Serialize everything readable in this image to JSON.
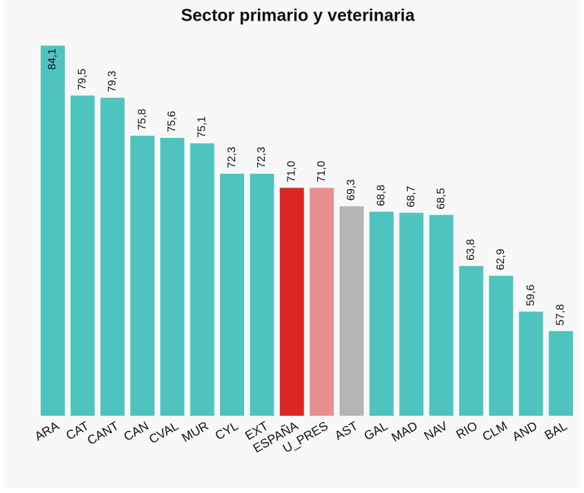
{
  "chart_data": {
    "type": "bar",
    "title": "Sector primario y veterinaria",
    "categories": [
      "ARA",
      "CAT",
      "CANT",
      "CAN",
      "CVAL",
      "MUR",
      "CYL",
      "EXT",
      "ESPAÑA",
      "U_PRES",
      "AST",
      "GAL",
      "MAD",
      "NAV",
      "RIO",
      "CLM",
      "AND",
      "BAL"
    ],
    "values": [
      84.1,
      79.5,
      79.3,
      75.8,
      75.6,
      75.1,
      72.3,
      72.3,
      71.0,
      71.0,
      69.3,
      68.8,
      68.7,
      68.5,
      63.8,
      62.9,
      59.6,
      57.8
    ],
    "value_labels": [
      "84,1",
      "79,5",
      "79,3",
      "75,8",
      "75,6",
      "75,1",
      "72,3",
      "72,3",
      "71,0",
      "71,0",
      "69,3",
      "68,8",
      "68,7",
      "68,5",
      "63,8",
      "62,9",
      "59,6",
      "57,8"
    ],
    "colors": [
      "#4fc4bf",
      "#4fc4bf",
      "#4fc4bf",
      "#4fc4bf",
      "#4fc4bf",
      "#4fc4bf",
      "#4fc4bf",
      "#4fc4bf",
      "#dc2626",
      "#e88e8e",
      "#b5b5b5",
      "#4fc4bf",
      "#4fc4bf",
      "#4fc4bf",
      "#4fc4bf",
      "#4fc4bf",
      "#4fc4bf",
      "#4fc4bf"
    ],
    "ylim": [
      50,
      85
    ]
  }
}
